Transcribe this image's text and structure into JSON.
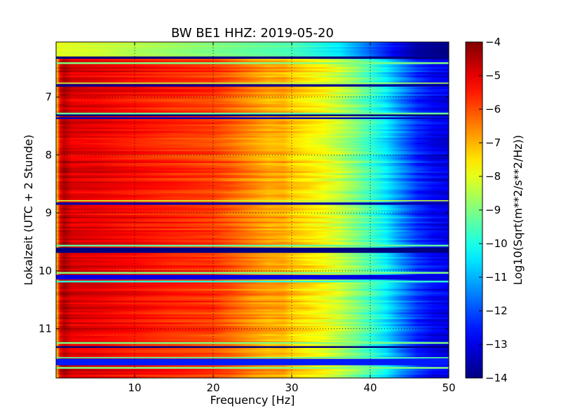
{
  "chart_data": {
    "type": "heatmap",
    "title": "BW BE1 HHZ: 2019-05-20",
    "xlabel": "Frequency [Hz]",
    "ylabel": "Lokalzeit (UTC + 2 Stunde)",
    "colorbar_label": "Log10(Sqrt(m**2/s**2/Hz))",
    "xlim": [
      0,
      50
    ],
    "ylim": [
      6.05,
      11.85
    ],
    "y_inverted": true,
    "xticks": [
      10,
      20,
      30,
      40,
      50
    ],
    "yticks": [
      7,
      8,
      9,
      10,
      11
    ],
    "clim": [
      -14,
      -4
    ],
    "colorbar_ticks": [
      -4,
      -5,
      -6,
      -7,
      -8,
      -9,
      -10,
      -11,
      -12,
      -13,
      -14
    ],
    "colormap": "jet",
    "grid": "dotted",
    "psd_profile": {
      "frequency_hz": [
        0,
        0.5,
        1,
        2,
        5,
        10,
        15,
        20,
        22,
        25,
        27,
        29,
        30,
        32,
        34,
        36,
        38,
        40,
        42,
        44,
        46,
        48,
        50
      ],
      "value": [
        -7.5,
        -5.0,
        -4.4,
        -4.9,
        -5.0,
        -5.3,
        -5.6,
        -5.8,
        -6.1,
        -6.6,
        -6.9,
        -6.9,
        -7.2,
        -7.5,
        -7.8,
        -8.3,
        -8.9,
        -9.6,
        -10.4,
        -11.4,
        -12.3,
        -12.8,
        -13.0
      ]
    },
    "early_profile": {
      "time_range": [
        6.05,
        6.3
      ],
      "frequency_hz": [
        0,
        5,
        10,
        20,
        30,
        36,
        40,
        43,
        46,
        50
      ],
      "value": [
        -8.0,
        -8.2,
        -8.5,
        -9.0,
        -9.5,
        -10.4,
        -11.8,
        -12.8,
        -13.6,
        -14.0
      ]
    },
    "gaps": [
      {
        "start": 6.3,
        "end": 6.34,
        "value": -14.0
      },
      {
        "start": 6.4,
        "end": 6.43,
        "value": -9.0
      },
      {
        "start": 6.75,
        "end": 6.77,
        "value": -8.5
      },
      {
        "start": 6.78,
        "end": 6.82,
        "value": -13.8
      },
      {
        "start": 7.27,
        "end": 7.3,
        "value": -9.2
      },
      {
        "start": 7.3,
        "end": 7.33,
        "value": -14.0
      },
      {
        "start": 7.35,
        "end": 7.38,
        "value": -13.4
      },
      {
        "start": 8.78,
        "end": 8.8,
        "value": -8.3
      },
      {
        "start": 8.82,
        "end": 8.86,
        "value": -13.6
      },
      {
        "start": 9.55,
        "end": 9.58,
        "value": -9.3
      },
      {
        "start": 9.6,
        "end": 9.69,
        "value": -14.0
      },
      {
        "start": 10.02,
        "end": 10.05,
        "value": -9.0
      },
      {
        "start": 10.07,
        "end": 10.15,
        "value": -13.0
      },
      {
        "start": 10.17,
        "end": 10.2,
        "value": -9.8
      },
      {
        "start": 11.23,
        "end": 11.26,
        "value": -9.0
      },
      {
        "start": 11.3,
        "end": 11.33,
        "value": -14.0
      },
      {
        "start": 11.49,
        "end": 11.51,
        "value": -9.4
      },
      {
        "start": 11.52,
        "end": 11.63,
        "value": -12.5
      },
      {
        "start": 11.66,
        "end": 11.69,
        "value": -9.0
      }
    ]
  }
}
